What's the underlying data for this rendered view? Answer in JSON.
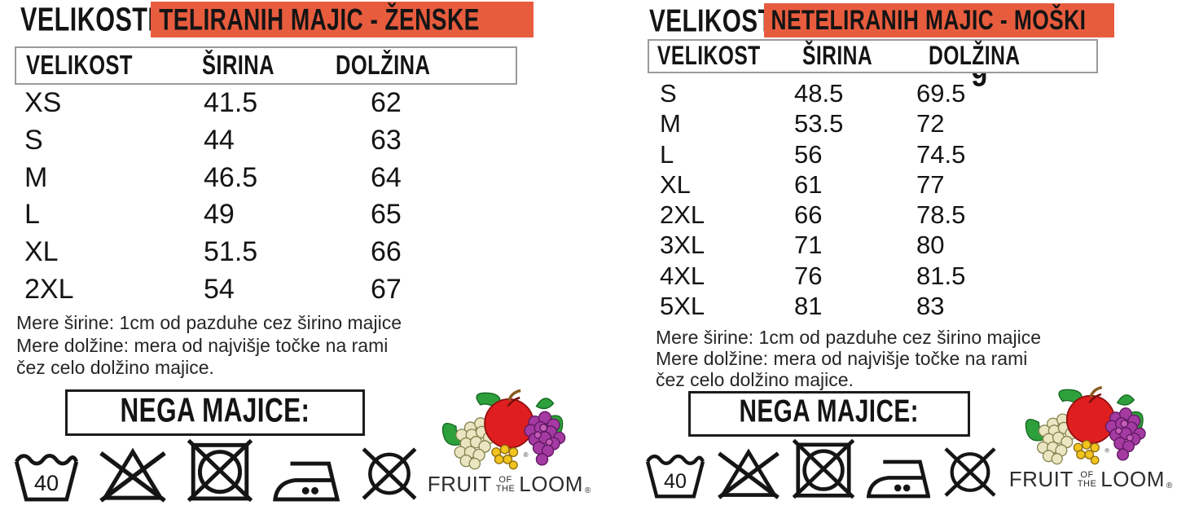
{
  "accent_color": "#E85C3E",
  "left": {
    "title_prefix": "VELIKOSTI",
    "title_highlight": "TELIRANIH MAJIC - ŽENSKE",
    "columns": [
      "VELIKOST",
      "ŠIRINA",
      "DOLŽINA"
    ],
    "rows": [
      [
        "XS",
        "41.5",
        "62"
      ],
      [
        "S",
        "44",
        "63"
      ],
      [
        "M",
        "46.5",
        "64"
      ],
      [
        "L",
        "49",
        "65"
      ],
      [
        "XL",
        "51.5",
        "66"
      ],
      [
        "2XL",
        "54",
        "67"
      ]
    ],
    "notes": [
      "Mere širine: 1cm od pazduhe cez širino majice",
      "Mere dolžine: mera od najvišje točke na rami",
      "čez celo dolžino majice."
    ],
    "care_title": "NEGA MAJICE:",
    "wash_temp": "40"
  },
  "right": {
    "title_prefix": "VELIKOSTI",
    "title_highlight": "NETELIRANIH MAJIC - MOŠKI",
    "columns": [
      "VELIKOST",
      "ŠIRINA",
      "DOLŽINA"
    ],
    "rows": [
      [
        "S",
        "48.5",
        "69.5"
      ],
      [
        "M",
        "53.5",
        "72"
      ],
      [
        "L",
        "56",
        "74.5"
      ],
      [
        "XL",
        "61",
        "77"
      ],
      [
        "2XL",
        "66",
        "78.5"
      ],
      [
        "3XL",
        "71",
        "80"
      ],
      [
        "4XL",
        "76",
        "81.5"
      ],
      [
        "5XL",
        "81",
        "83"
      ]
    ],
    "notes": [
      "Mere širine: 1cm od pazduhe cez širino majice",
      "Mere dolžine: mera od najvišje točke na rami",
      "čez celo dolžino majice."
    ],
    "care_title": "NEGA MAJICE:",
    "wash_temp": "40",
    "clipped_artifact": "g"
  },
  "care_icons": [
    "wash-40",
    "do-not-bleach",
    "do-not-tumble-dry",
    "iron",
    "do-not-dry-clean"
  ],
  "logo": {
    "word1": "FRUIT",
    "word2_top": "OF",
    "word2_bottom": "THE",
    "word3": "LOOM",
    "reg": "®",
    "colors": {
      "apple": "#DF1F1F",
      "leaf": "#2DA03C",
      "white_grape": "#EBE5C2",
      "purple_grape": "#A43AA2",
      "currant": "#F1C41E"
    }
  }
}
